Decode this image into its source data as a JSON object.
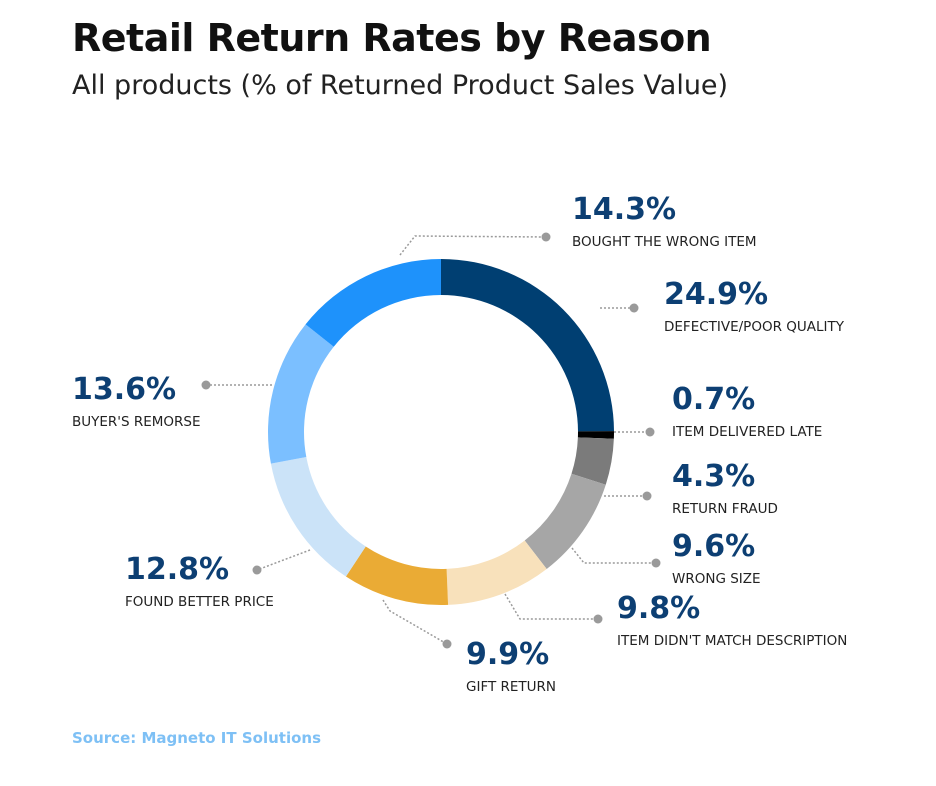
{
  "chart_data": {
    "type": "pie",
    "variant": "donut",
    "title": "Retail Return Rates by Reason",
    "subtitle": "All products (% of Returned Product Sales Value)",
    "source": "Source: Magneto IT Solutions",
    "slices": [
      {
        "label": "DEFECTIVE/POOR QUALITY",
        "value": 24.9,
        "display": "24.9%",
        "color": "#003f72"
      },
      {
        "label": "ITEM DELIVERED LATE",
        "value": 0.7,
        "display": "0.7%",
        "color": "#000000"
      },
      {
        "label": "RETURN FRAUD",
        "value": 4.3,
        "display": "4.3%",
        "color": "#7b7b7b"
      },
      {
        "label": "WRONG SIZE",
        "value": 9.6,
        "display": "9.6%",
        "color": "#a6a6a6"
      },
      {
        "label": "ITEM DIDN'T MATCH DESCRIPTION",
        "value": 9.8,
        "display": "9.8%",
        "color": "#f8e1bb"
      },
      {
        "label": "GIFT RETURN",
        "value": 9.9,
        "display": "9.9%",
        "color": "#eaab35"
      },
      {
        "label": "FOUND BETTER PRICE",
        "value": 12.8,
        "display": "12.8%",
        "color": "#cbe3f8"
      },
      {
        "label": "BUYER'S  REMORSE",
        "value": 13.6,
        "display": "13.6%",
        "color": "#7bbfff"
      },
      {
        "label": "BOUGHT THE WRONG ITEM",
        "value": 14.3,
        "display": "14.3%",
        "color": "#1e92fb"
      }
    ]
  }
}
